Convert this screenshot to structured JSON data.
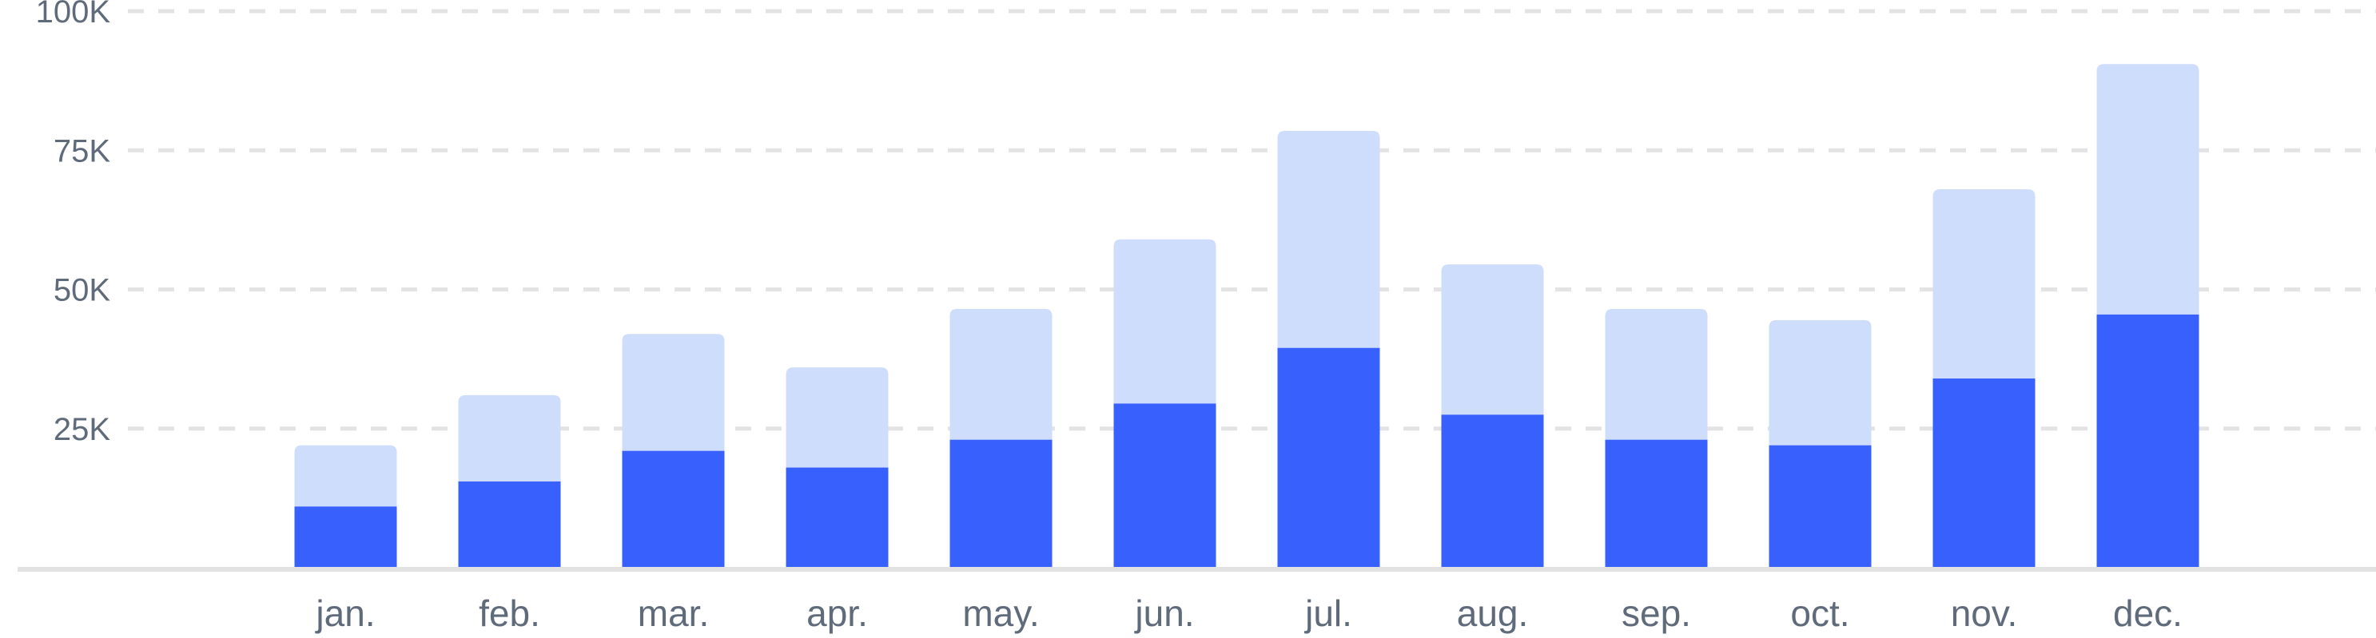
{
  "chart_data": {
    "type": "bar",
    "stacked": true,
    "categories": [
      "jan.",
      "feb.",
      "mar.",
      "apr.",
      "may.",
      "jun.",
      "jul.",
      "aug.",
      "sep.",
      "oct.",
      "nov.",
      "dec."
    ],
    "series": [
      {
        "values": [
          11000,
          15500,
          21000,
          18000,
          23000,
          29500,
          39500,
          27500,
          23000,
          22000,
          34000,
          45500
        ]
      },
      {
        "values": [
          11000,
          15500,
          21000,
          18000,
          23500,
          29500,
          39000,
          27000,
          23500,
          22500,
          34000,
          45000
        ]
      }
    ],
    "ylim": [
      0,
      100000
    ],
    "yticks": [
      25000,
      50000,
      75000,
      100000
    ],
    "ytick_labels": [
      "25K",
      "50K",
      "75K",
      "100K"
    ],
    "grid": true,
    "legend": "none",
    "colors": {
      "series_dark": "#3860fc",
      "series_light": "#cfddfd",
      "grid": "#e3e3e3",
      "baseline": "#e2e2e2",
      "label": "#5f6b7a"
    }
  }
}
